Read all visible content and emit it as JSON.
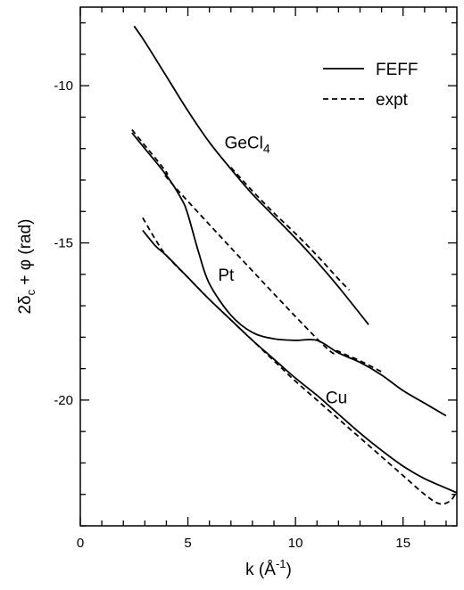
{
  "chart_data": {
    "type": "line",
    "xlabel": {
      "base": "k (Å",
      "sup": "-1",
      "tail": ")"
    },
    "ylabel": {
      "pre": "2δ",
      "sub": "c",
      "post": " + φ (rad)"
    },
    "xlim": [
      0,
      17.5
    ],
    "ylim": [
      -24,
      -7.5
    ],
    "xticks": [
      0,
      5,
      10,
      15
    ],
    "yticks": [
      -10,
      -15,
      -20
    ],
    "xtick_labels": [
      "0",
      "5",
      "10",
      "15"
    ],
    "ytick_labels": [
      "-10",
      "-15",
      "-20"
    ],
    "grid": false,
    "legend": {
      "placement": "top-right",
      "entries": [
        {
          "label": "FEFF",
          "style": "solid"
        },
        {
          "label": "expt",
          "style": "dashed"
        }
      ]
    },
    "curve_labels": [
      {
        "text": "GeCl",
        "sub": "4",
        "x": 6.7,
        "y": -12.0
      },
      {
        "text": "Pt",
        "x": 6.4,
        "y": -16.2
      },
      {
        "text": "Cu",
        "x": 11.4,
        "y": -20.1
      }
    ],
    "series": [
      {
        "name": "FEFF",
        "group": "GeCl4",
        "style": "solid",
        "x": [
          2.5,
          3.0,
          4.0,
          5.0,
          6.0,
          7.0,
          8.0,
          9.0,
          10.0,
          11.0,
          12.0,
          13.4
        ],
        "y": [
          -8.1,
          -8.6,
          -9.7,
          -10.8,
          -11.8,
          -12.65,
          -13.45,
          -14.15,
          -14.85,
          -15.6,
          -16.4,
          -17.6
        ]
      },
      {
        "name": "expt",
        "group": "GeCl4",
        "style": "dashed",
        "x": [
          7.0,
          8.0,
          9.0,
          10.0,
          11.0,
          12.0,
          12.5
        ],
        "y": [
          -12.6,
          -13.35,
          -14.05,
          -14.7,
          -15.4,
          -16.15,
          -16.5
        ]
      },
      {
        "name": "FEFF",
        "group": "Pt",
        "style": "solid",
        "x": [
          2.4,
          3.0,
          4.0,
          4.7,
          5.0,
          5.5,
          6.0,
          7.0,
          8.0,
          9.0,
          10.0,
          11.0,
          12.0,
          13.0,
          14.0,
          15.0,
          16.0,
          17.0
        ],
        "y": [
          -11.5,
          -12.0,
          -12.85,
          -13.6,
          -14.1,
          -15.3,
          -16.3,
          -17.3,
          -17.85,
          -18.05,
          -18.1,
          -18.1,
          -18.5,
          -18.8,
          -19.2,
          -19.7,
          -20.1,
          -20.5
        ]
      },
      {
        "name": "expt",
        "group": "Pt",
        "style": "dashed",
        "x": [
          2.4,
          3.0,
          4.0,
          4.5,
          11.0,
          12.0,
          13.0,
          14.0
        ],
        "y": [
          -11.4,
          -11.9,
          -12.75,
          -13.3,
          -18.05,
          -18.45,
          -18.75,
          -19.1
        ]
      },
      {
        "name": "FEFF",
        "group": "Cu",
        "style": "solid",
        "x": [
          2.9,
          3.5,
          4.0,
          5.0,
          6.0,
          7.0,
          8.0,
          9.0,
          10.0,
          11.0,
          12.0,
          13.0,
          14.0,
          15.0,
          16.0,
          17.0,
          17.5
        ],
        "y": [
          -14.6,
          -15.1,
          -15.4,
          -16.1,
          -16.8,
          -17.45,
          -18.1,
          -18.7,
          -19.3,
          -19.85,
          -20.45,
          -21.05,
          -21.6,
          -22.1,
          -22.5,
          -22.8,
          -22.95
        ]
      },
      {
        "name": "expt",
        "group": "Cu",
        "style": "dashed",
        "x": [
          2.9,
          3.5,
          4.0,
          5.0,
          6.0,
          7.0,
          8.0,
          9.0,
          10.0,
          11.0,
          12.0,
          13.0,
          14.0,
          15.0,
          16.0,
          16.7,
          17.2,
          17.5
        ],
        "y": [
          -14.2,
          -14.9,
          -15.4,
          -16.1,
          -16.8,
          -17.45,
          -18.1,
          -18.75,
          -19.4,
          -20.0,
          -20.6,
          -21.2,
          -21.8,
          -22.4,
          -23.0,
          -23.3,
          -23.2,
          -22.9
        ]
      }
    ]
  }
}
